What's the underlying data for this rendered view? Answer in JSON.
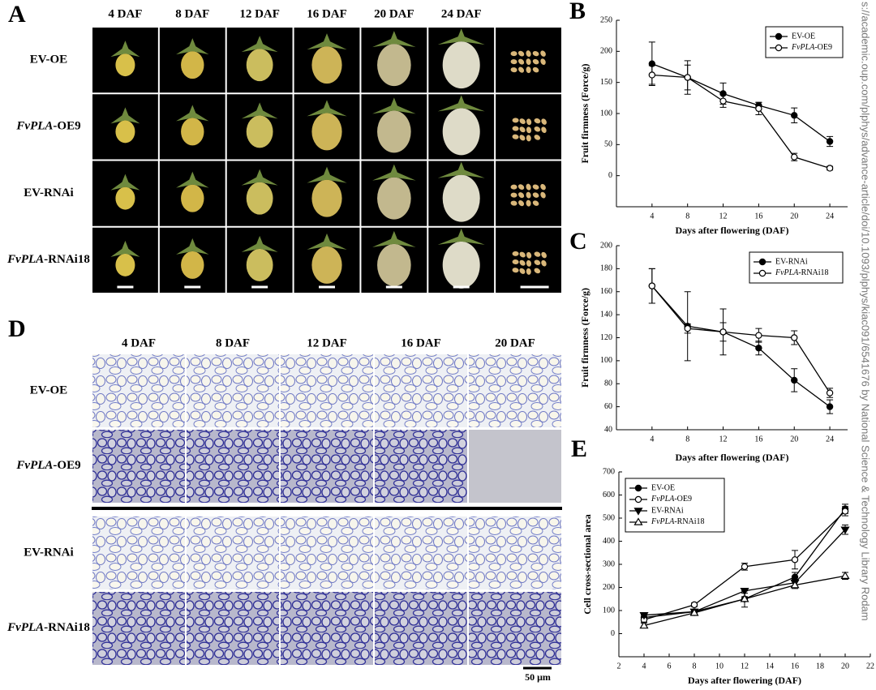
{
  "panel_labels": [
    "A",
    "B",
    "C",
    "D",
    "E"
  ],
  "panel_a": {
    "columns": [
      "4 DAF",
      "8 DAF",
      "12 DAF",
      "16 DAF",
      "20 DAF",
      "24 DAF"
    ],
    "rows": [
      "EV-OE",
      "FvPLA-OE9",
      "EV-RNAi",
      "FvPLA-RNAi18"
    ]
  },
  "panel_d": {
    "columns": [
      "4 DAF",
      "8 DAF",
      "12 DAF",
      "16 DAF",
      "20 DAF"
    ],
    "rows": [
      "EV-OE",
      "FvPLA-OE9",
      "EV-RNAi",
      "FvPLA-RNAi18"
    ],
    "scale_bar": "50 μm"
  },
  "chart_data": [
    {
      "type": "line",
      "xlabel": "Days after flowering (DAF)",
      "ylabel": "Fruit firmness (Force/g)",
      "x": [
        4,
        8,
        12,
        16,
        20,
        24
      ],
      "xlim": [
        0,
        26
      ],
      "xticks": [
        4,
        8,
        12,
        16,
        20,
        24
      ],
      "ylim": [
        -50,
        250
      ],
      "yticks": [
        0,
        50,
        100,
        150,
        200,
        250
      ],
      "legend": "upper right",
      "series": [
        {
          "name": "EV-OE",
          "marker": "filled-circle",
          "color": "#000000",
          "values": [
            180,
            158,
            132,
            113,
            97,
            55
          ],
          "errors": [
            35,
            27,
            17,
            5,
            12,
            8
          ]
        },
        {
          "name": "FvPLA-OE9",
          "marker": "open-circle",
          "color": "#000000",
          "values": [
            162,
            158,
            120,
            108,
            30,
            12
          ],
          "errors": [
            15,
            20,
            10,
            10,
            6,
            3
          ]
        }
      ]
    },
    {
      "type": "line",
      "xlabel": "Days after flowering (DAF)",
      "ylabel": "Fruit firmness (Force/g)",
      "x": [
        4,
        8,
        12,
        16,
        20,
        24
      ],
      "xlim": [
        0,
        26
      ],
      "xticks": [
        4,
        8,
        12,
        16,
        20,
        24
      ],
      "ylim": [
        40,
        200
      ],
      "yticks": [
        40,
        60,
        80,
        100,
        120,
        140,
        160,
        180,
        200
      ],
      "legend": "upper right",
      "series": [
        {
          "name": "EV-RNAi",
          "marker": "filled-circle",
          "color": "#000000",
          "values": [
            165,
            130,
            125,
            111,
            83,
            60
          ],
          "errors": [
            15,
            30,
            20,
            6,
            10,
            6
          ]
        },
        {
          "name": "FvPLA-RNAi18",
          "marker": "open-circle",
          "color": "#000000",
          "values": [
            165,
            128,
            125,
            122,
            120,
            72
          ],
          "errors": [
            15,
            4,
            8,
            6,
            6,
            4
          ]
        }
      ]
    },
    {
      "type": "line",
      "xlabel": "Days after flowering (DAF)",
      "ylabel": "Cell cross-sectional area",
      "x": [
        4,
        8,
        12,
        16,
        20
      ],
      "xlim": [
        2,
        22
      ],
      "xticks": [
        2,
        4,
        6,
        8,
        10,
        12,
        14,
        16,
        18,
        20,
        22
      ],
      "ylim": [
        -100,
        700
      ],
      "yticks": [
        0,
        100,
        200,
        300,
        400,
        500,
        600,
        700
      ],
      "legend": "upper left",
      "series": [
        {
          "name": "EV-OE",
          "marker": "filled-circle",
          "color": "#000000",
          "values": [
            70,
            95,
            150,
            245,
            540
          ],
          "errors": [
            10,
            8,
            10,
            20,
            20
          ]
        },
        {
          "name": "FvPLA-OE9",
          "marker": "open-circle",
          "color": "#000000",
          "values": [
            60,
            125,
            290,
            320,
            530
          ],
          "errors": [
            10,
            8,
            15,
            40,
            20
          ]
        },
        {
          "name": "EV-RNAi",
          "marker": "filled-triangle-down",
          "color": "#000000",
          "values": [
            80,
            95,
            185,
            220,
            450
          ],
          "errors": [
            10,
            8,
            10,
            15,
            20
          ]
        },
        {
          "name": "FvPLA-RNAi18",
          "marker": "open-triangle-up",
          "color": "#000000",
          "values": [
            35,
            90,
            150,
            210,
            250
          ],
          "errors": [
            10,
            8,
            35,
            15,
            15
          ]
        }
      ]
    }
  ],
  "watermark": "s://academic.oup.com/plphys/advance-article/doi/10.1093/plphys/kiac091/6541676 by National Science & Technology Library Rodam"
}
